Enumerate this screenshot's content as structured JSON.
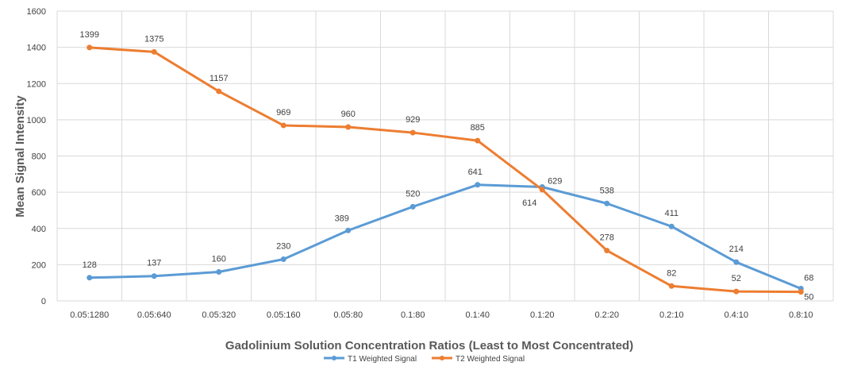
{
  "chart_data": {
    "type": "line",
    "title": "",
    "xlabel": "Gadolinium Solution Concentration Ratios (Least to Most Concentrated)",
    "ylabel": "Mean Signal Intensity",
    "ylim": [
      0,
      1600
    ],
    "yticks": [
      "0",
      "200",
      "400",
      "600",
      "800",
      "1000",
      "1200",
      "1400",
      "1600"
    ],
    "categories": [
      "0.05:1280",
      "0.05:640",
      "0.05:320",
      "0.05:160",
      "0.05:80",
      "0.1:80",
      "0.1:40",
      "0.1:20",
      "0.2:20",
      "0.2:10",
      "0.4:10",
      "0.8:10"
    ],
    "grid": true,
    "legend_position": "bottom",
    "series": [
      {
        "name": "T1 Weighted Signal",
        "color": "#5b9bd5",
        "values": [
          128,
          137,
          160,
          230,
          389,
          520,
          641,
          629,
          538,
          411,
          214,
          68
        ]
      },
      {
        "name": "T2 Weighted Signal",
        "color": "#ed7d31",
        "values": [
          1399,
          1375,
          1157,
          969,
          960,
          929,
          885,
          614,
          278,
          82,
          52,
          50
        ]
      }
    ]
  }
}
